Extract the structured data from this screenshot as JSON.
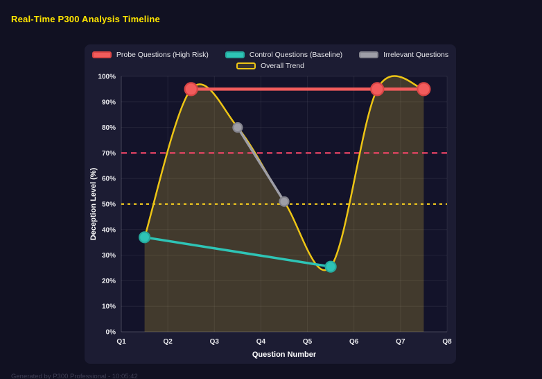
{
  "page": {
    "title": "Real-Time P300 Analysis Timeline",
    "footer": "Generated by P300 Professional - 10:05:42"
  },
  "chart_data": {
    "type": "line",
    "title": "Real-Time P300 Analysis Timeline",
    "xlabel": "Question Number",
    "ylabel": "Deception Level (%)",
    "x_ticks": [
      "Q1",
      "Q2",
      "Q3",
      "Q4",
      "Q5",
      "Q6",
      "Q7",
      "Q8"
    ],
    "y_ticks": [
      "0%",
      "10%",
      "20%",
      "30%",
      "40%",
      "50%",
      "60%",
      "70%",
      "80%",
      "90%",
      "100%"
    ],
    "xlim": [
      1,
      8
    ],
    "ylim": [
      0,
      100
    ],
    "grid": true,
    "legend_position": "top",
    "series": [
      {
        "name": "Probe Questions (High Risk)",
        "color": "#f25c5c",
        "point_border": "#d94545",
        "line_width": 4.5,
        "point_radius": 9,
        "smooth": false,
        "area": false,
        "show_points": true,
        "swatch_fill": "#f25c5c",
        "swatch_border": "#d94545",
        "x": [
          2.5,
          6.5,
          7.5
        ],
        "values": [
          95,
          95,
          95
        ]
      },
      {
        "name": "Control Questions (Baseline)",
        "color": "#2ec4b6",
        "point_border": "#25a99d",
        "line_width": 3.5,
        "point_radius": 7.5,
        "smooth": false,
        "area": false,
        "show_points": true,
        "swatch_fill": "#2ec4b6",
        "swatch_border": "#25a99d",
        "x": [
          1.5,
          5.5
        ],
        "values": [
          37,
          25.5
        ]
      },
      {
        "name": "Irrelevant Questions",
        "color": "#9e9ea7",
        "point_border": "#84848e",
        "line_width": 3.5,
        "point_radius": 6.5,
        "smooth": false,
        "area": false,
        "show_points": true,
        "swatch_fill": "#9e9ea7",
        "swatch_border": "#84848e",
        "x": [
          3.5,
          4.5
        ],
        "values": [
          80,
          51
        ]
      },
      {
        "name": "Overall Trend",
        "color": "#edc515",
        "point_border": "#edc515",
        "line_width": 2.5,
        "point_radius": 0,
        "smooth": true,
        "area": true,
        "area_fill": "rgba(235,200,60,0.22)",
        "show_points": false,
        "swatch_fill": "rgba(237,197,21,0.15)",
        "swatch_border": "#edc515",
        "x": [
          1.5,
          2.5,
          3.5,
          4.5,
          5.5,
          6.5,
          7.5
        ],
        "values": [
          37,
          95,
          80,
          51,
          25.5,
          95,
          95
        ]
      }
    ],
    "thresholds": [
      {
        "value": 70,
        "color": "#f04566",
        "dash": "8 6",
        "width": 2.2
      },
      {
        "value": 50,
        "color": "#f0c81e",
        "dash": "4 5",
        "width": 2
      }
    ]
  }
}
